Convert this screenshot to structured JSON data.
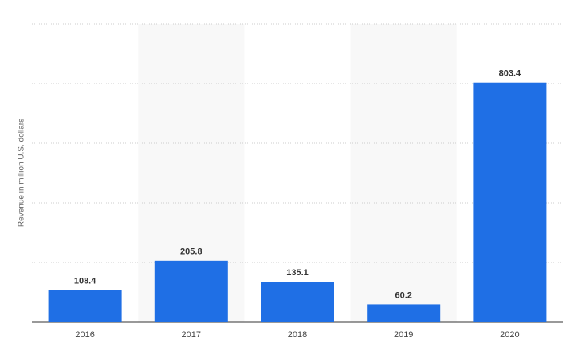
{
  "chart_data": {
    "type": "bar",
    "y_label": "Revenue in million U.S. dollars",
    "categories": [
      "2016",
      "2017",
      "2018",
      "2019",
      "2020"
    ],
    "values": [
      108.4,
      205.8,
      135.1,
      60.2,
      803.4
    ],
    "color": "#1f6fe5",
    "ylim": [
      0,
      1000
    ],
    "yticks": [
      0,
      200,
      400,
      600,
      800,
      1000
    ],
    "grid": true
  }
}
